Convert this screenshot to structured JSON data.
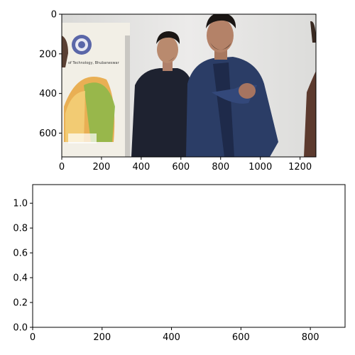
{
  "chart_data": [
    {
      "type": "image",
      "xlim": [
        0,
        1280
      ],
      "ylim": [
        720,
        0
      ],
      "xticks": [
        0,
        200,
        400,
        600,
        800,
        1000,
        1200
      ],
      "yticks": [
        0,
        200,
        400,
        600
      ],
      "grid": false,
      "image": {
        "description_hidden": true,
        "poster_text": [
          "of Technology, Bhubaneswar"
        ],
        "logo_icon": "institute-seal-icon"
      }
    },
    {
      "type": "scatter",
      "xlim": [
        0,
        900
      ],
      "ylim": [
        0,
        1.15
      ],
      "xticks": [
        0,
        200,
        400,
        600,
        800
      ],
      "yticks": [
        0.0,
        0.2,
        0.4,
        0.6,
        0.8,
        1.0
      ],
      "grid": false,
      "series": []
    }
  ],
  "colors": {
    "axis": "#000000",
    "background": "#ffffff",
    "wall": "#e6e6e4",
    "poster": "#f2efe6",
    "poster_accent_orange": "#e8a33a",
    "poster_accent_green": "#8fb84a",
    "jacket_dark": "#1e2230",
    "jacket_blue": "#2b3d66",
    "skin": "#b98a6e",
    "hair": "#1a1614"
  }
}
